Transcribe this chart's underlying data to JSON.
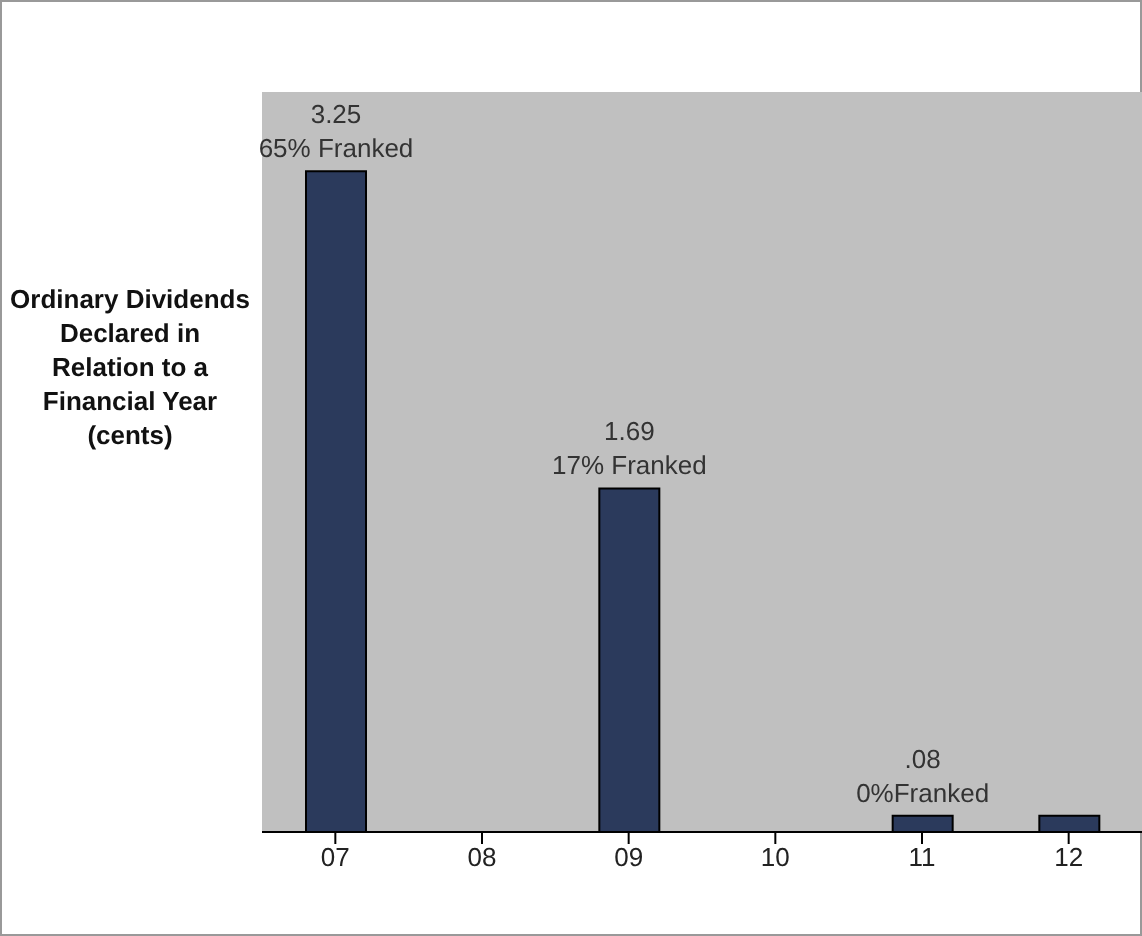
{
  "chart_data": {
    "type": "bar",
    "ylabel": "Ordinary Dividends Declared in Relation to a Financial Year (cents)",
    "categories": [
      "07",
      "08",
      "09",
      "10",
      "11",
      "12"
    ],
    "values": [
      3.25,
      null,
      1.69,
      null,
      0.08,
      0.08
    ],
    "value_labels": [
      "3.25",
      null,
      "1.69",
      null,
      ".08",
      null
    ],
    "annotations": [
      {
        "text": "65% Franked",
        "x": "07",
        "y": 3.25
      },
      {
        "text": "17% Franked",
        "x": "09",
        "y": 1.69
      },
      {
        "text": "0%Franked",
        "x": "11",
        "y": 0.08
      }
    ],
    "color": "#2b3a5c"
  }
}
